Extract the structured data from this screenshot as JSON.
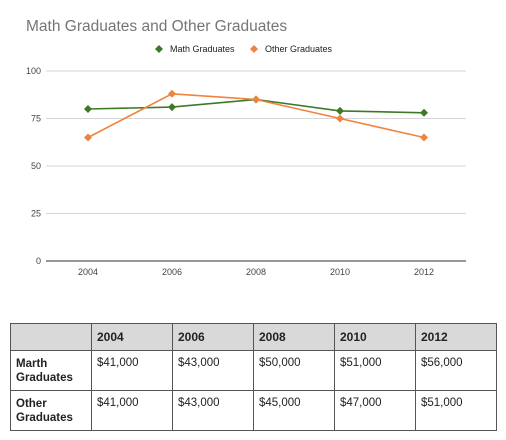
{
  "chart_data": {
    "type": "line",
    "title": "Math Graduates and Other Graduates",
    "x": [
      "2004",
      "2006",
      "2008",
      "2010",
      "2012"
    ],
    "ylim": [
      0,
      100
    ],
    "yticks": [
      0,
      25,
      50,
      75,
      100
    ],
    "grid": true,
    "legend_position": "top",
    "series": [
      {
        "name": "Math Graduates",
        "color": "#3d7a26",
        "marker": "diamond",
        "values": [
          80,
          81,
          85,
          79,
          78
        ]
      },
      {
        "name": "Other Graduates",
        "color": "#ef8440",
        "marker": "diamond",
        "values": [
          65,
          88,
          85,
          75,
          65
        ]
      }
    ]
  },
  "table": {
    "headers": [
      "",
      "2004",
      "2006",
      "2008",
      "2010",
      "2012"
    ],
    "rows": [
      {
        "label": "Marth Graduates",
        "cells": [
          "$41,000",
          "$43,000",
          "$50,000",
          "$51,000",
          "$56,000"
        ]
      },
      {
        "label": "Other Graduates",
        "cells": [
          "$41,000",
          "$43,000",
          "$45,000",
          "$47,000",
          "$51,000"
        ]
      }
    ]
  }
}
